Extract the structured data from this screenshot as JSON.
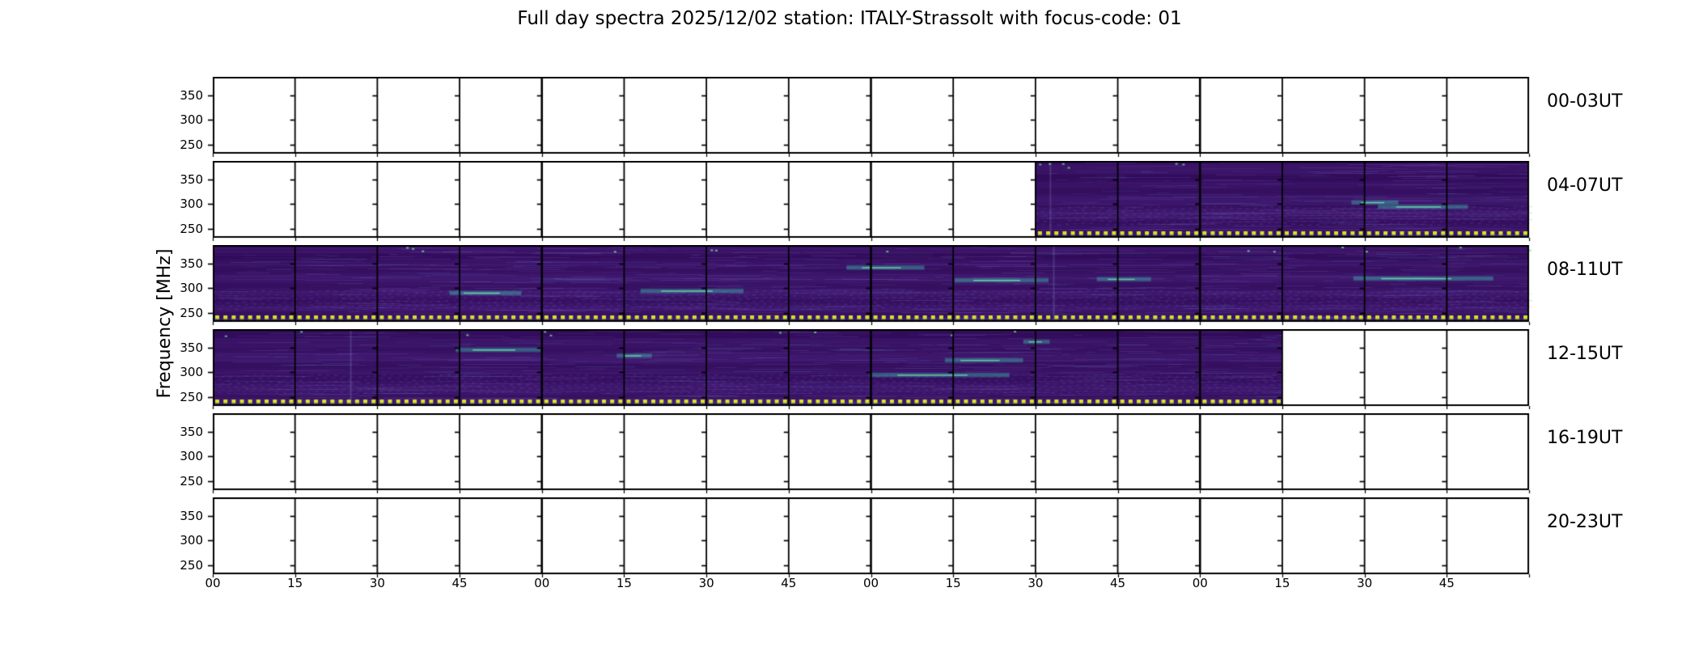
{
  "chart_data": {
    "type": "heatmap",
    "title": "Full day spectra 2025/12/02 station: ITALY-Strassolt with focus-code: 01",
    "ylabel": "Frequency [MHz]",
    "y_axis": {
      "tick_labels_top_to_bottom": [
        "350",
        "300",
        "250"
      ],
      "tick_values": [
        250,
        300,
        350
      ],
      "approx_range_mhz": [
        232,
        392
      ]
    },
    "x_axis": {
      "tick_labels": [
        "00",
        "15",
        "30",
        "45",
        "00",
        "15",
        "30",
        "45",
        "00",
        "15",
        "30",
        "45",
        "00",
        "15",
        "30",
        "45"
      ],
      "cells_per_row": 16,
      "minutes_per_cell": 15,
      "hours_per_row": 4
    },
    "rows": [
      {
        "label": "00-03UT",
        "has_data": false,
        "data_cells": [
          0,
          0
        ],
        "data_ut": ""
      },
      {
        "label": "04-07UT",
        "has_data": true,
        "data_cells": [
          10,
          16
        ],
        "data_ut": "06:30-08:00"
      },
      {
        "label": "08-11UT",
        "has_data": true,
        "data_cells": [
          0,
          16
        ],
        "data_ut": "08:00-12:00"
      },
      {
        "label": "12-15UT",
        "has_data": true,
        "data_cells": [
          0,
          13
        ],
        "data_ut": "12:00-15:15"
      },
      {
        "label": "16-19UT",
        "has_data": false,
        "data_cells": [
          0,
          0
        ],
        "data_ut": ""
      },
      {
        "label": "20-23UT",
        "has_data": false,
        "data_cells": [
          0,
          0
        ],
        "data_ut": ""
      }
    ],
    "legend": "none",
    "grid": "15-min cell borders with frequency tick dashes"
  },
  "colors": {
    "background": "#ffffff",
    "frame": "#000000",
    "spectro_dark": "#320a5a",
    "spectro_base": "#48167e",
    "spectro_light": "#7d55c8",
    "spectro_blue": "#5080c8",
    "spectro_teal": "#3ec8b2",
    "spectro_bright": "#78ebb4",
    "marker_dot": "#d7e221",
    "marker_dot_edge": "#3ca878"
  }
}
